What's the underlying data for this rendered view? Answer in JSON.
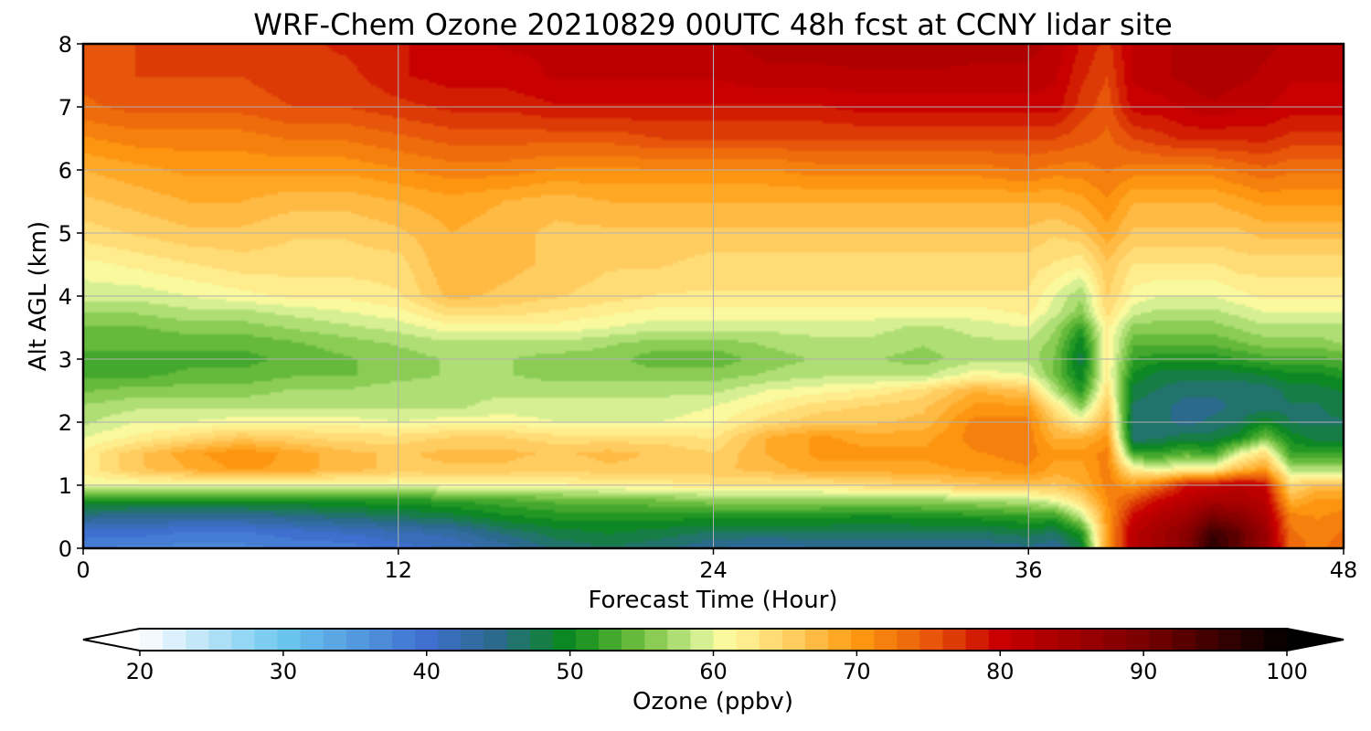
{
  "chart_data": {
    "type": "heatmap",
    "title": "WRF-Chem Ozone  20210829 00UTC 48h fcst at CCNY lidar site",
    "xlabel": "Forecast Time (Hour)",
    "ylabel": "Alt AGL (km)",
    "xlim": [
      0,
      48
    ],
    "ylim": [
      0,
      8
    ],
    "xticks": [
      0,
      12,
      24,
      36,
      48
    ],
    "yticks": [
      0,
      1,
      2,
      3,
      4,
      5,
      6,
      7,
      8
    ],
    "grid": true,
    "x": [
      0,
      2,
      4,
      6,
      8,
      10,
      12,
      14,
      16,
      18,
      20,
      22,
      24,
      26,
      28,
      30,
      32,
      34,
      36,
      37,
      38,
      39,
      40,
      41,
      42,
      43,
      44,
      45,
      46,
      47,
      48
    ],
    "y": [
      0,
      0.25,
      0.5,
      0.75,
      1,
      1.25,
      1.5,
      1.75,
      2,
      2.25,
      2.5,
      2.75,
      3,
      3.25,
      3.5,
      3.75,
      4,
      4.5,
      5,
      5.5,
      6,
      6.5,
      7,
      7.5,
      8
    ],
    "z_units": "ppbv",
    "z": [
      [
        38,
        37,
        37,
        37,
        38,
        38,
        40,
        41,
        43,
        46,
        47,
        46,
        44,
        43,
        44,
        44,
        44,
        44,
        45,
        44,
        48,
        70,
        82,
        85,
        88,
        97,
        92,
        86,
        74,
        72,
        74
      ],
      [
        40,
        40,
        39,
        39,
        40,
        41,
        42,
        43,
        46,
        48,
        49,
        48,
        47,
        47,
        47,
        47,
        47,
        47,
        48,
        47,
        51,
        70,
        82,
        85,
        88,
        95,
        92,
        86,
        73,
        72,
        73
      ],
      [
        45,
        44,
        44,
        44,
        45,
        46,
        47,
        48,
        50,
        51,
        51,
        51,
        51,
        51,
        51,
        50,
        51,
        51,
        52,
        52,
        58,
        70,
        80,
        83,
        85,
        90,
        88,
        84,
        72,
        71,
        72
      ],
      [
        50,
        50,
        50,
        50,
        50,
        51,
        51,
        52,
        53,
        54,
        54,
        55,
        56,
        56,
        56,
        56,
        56,
        57,
        58,
        60,
        64,
        71,
        76,
        80,
        82,
        84,
        84,
        82,
        68,
        70,
        70
      ],
      [
        60,
        60,
        60,
        60,
        60,
        60,
        60,
        61,
        61,
        61,
        62,
        62,
        63,
        63,
        63,
        64,
        65,
        66,
        67,
        66,
        68,
        72,
        70,
        74,
        79,
        80,
        82,
        80,
        64,
        67,
        67
      ],
      [
        62,
        66,
        68,
        70,
        69,
        67,
        66,
        66,
        66,
        65,
        66,
        66,
        66,
        67,
        69,
        69,
        69,
        70,
        71,
        69,
        69,
        72,
        62,
        60,
        62,
        62,
        67,
        70,
        58,
        58,
        58
      ],
      [
        62,
        66,
        69,
        71,
        69,
        67,
        66,
        67,
        67,
        66,
        67,
        66,
        65,
        68,
        70,
        70,
        70,
        71,
        72,
        70,
        70,
        72,
        52,
        52,
        54,
        52,
        60,
        64,
        52,
        52,
        52
      ],
      [
        60,
        62,
        64,
        66,
        65,
        64,
        64,
        65,
        65,
        64,
        64,
        64,
        63,
        68,
        70,
        69,
        69,
        72,
        72,
        68,
        68,
        70,
        46,
        47,
        48,
        48,
        50,
        55,
        50,
        48,
        48
      ],
      [
        58,
        60,
        60,
        61,
        61,
        61,
        60,
        61,
        61,
        60,
        60,
        60,
        61,
        64,
        66,
        66,
        67,
        72,
        72,
        66,
        62,
        68,
        46,
        46,
        45,
        46,
        47,
        50,
        47,
        47,
        47
      ],
      [
        57,
        58,
        58,
        58,
        58,
        58,
        58,
        58,
        59,
        59,
        59,
        59,
        60,
        62,
        64,
        65,
        66,
        70,
        70,
        63,
        56,
        66,
        47,
        46,
        45,
        45,
        46,
        46,
        47,
        47,
        48
      ],
      [
        55,
        56,
        56,
        56,
        57,
        57,
        58,
        58,
        58,
        58,
        58,
        58,
        58,
        60,
        61,
        62,
        64,
        68,
        66,
        58,
        51,
        64,
        48,
        47,
        46,
        46,
        46,
        46,
        48,
        48,
        49
      ],
      [
        53,
        53,
        54,
        54,
        55,
        55,
        56,
        57,
        57,
        56,
        56,
        56,
        56,
        57,
        58,
        58,
        58,
        61,
        60,
        55,
        49,
        62,
        50,
        48,
        48,
        48,
        48,
        49,
        50,
        50,
        51
      ],
      [
        53,
        53,
        53,
        53,
        54,
        55,
        56,
        57,
        57,
        56,
        56,
        54,
        54,
        56,
        57,
        57,
        56,
        58,
        58,
        55,
        48,
        62,
        52,
        51,
        51,
        51,
        52,
        53,
        53,
        53,
        54
      ],
      [
        54,
        54,
        54,
        54,
        55,
        56,
        57,
        58,
        58,
        58,
        57,
        56,
        56,
        57,
        58,
        58,
        57,
        58,
        58,
        56,
        49,
        62,
        54,
        54,
        54,
        54,
        55,
        56,
        56,
        56,
        57
      ],
      [
        55,
        55,
        56,
        56,
        57,
        58,
        59,
        61,
        61,
        61,
        60,
        59,
        59,
        59,
        59,
        59,
        58,
        59,
        60,
        57,
        52,
        62,
        56,
        56,
        56,
        56,
        57,
        58,
        58,
        58,
        58
      ],
      [
        57,
        57,
        58,
        58,
        59,
        60,
        61,
        64,
        64,
        63,
        62,
        61,
        61,
        61,
        61,
        61,
        61,
        61,
        62,
        59,
        56,
        64,
        59,
        58,
        58,
        58,
        59,
        60,
        60,
        60,
        60
      ],
      [
        59,
        59,
        60,
        61,
        62,
        62,
        63,
        67,
        66,
        65,
        64,
        63,
        63,
        63,
        63,
        63,
        63,
        63,
        63,
        60,
        57,
        65,
        61,
        60,
        60,
        60,
        61,
        62,
        62,
        62,
        62
      ],
      [
        61,
        62,
        63,
        64,
        64,
        64,
        64,
        68,
        67,
        66,
        65,
        65,
        64,
        64,
        64,
        64,
        64,
        64,
        64,
        63,
        62,
        66,
        63,
        63,
        63,
        63,
        64,
        64,
        64,
        64,
        64
      ],
      [
        64,
        65,
        66,
        66,
        65,
        65,
        66,
        68,
        67,
        66,
        66,
        66,
        66,
        66,
        66,
        66,
        66,
        66,
        66,
        65,
        66,
        69,
        66,
        66,
        66,
        66,
        66,
        67,
        67,
        67,
        67
      ],
      [
        66,
        67,
        68,
        68,
        67,
        67,
        68,
        69,
        68,
        67,
        68,
        68,
        68,
        68,
        68,
        68,
        68,
        68,
        68,
        68,
        69,
        71,
        68,
        68,
        68,
        68,
        69,
        70,
        70,
        70,
        70
      ],
      [
        68,
        69,
        70,
        70,
        70,
        70,
        71,
        72,
        72,
        71,
        71,
        71,
        71,
        71,
        72,
        72,
        72,
        72,
        73,
        72,
        72,
        73,
        72,
        72,
        72,
        72,
        73,
        74,
        73,
        73,
        73
      ],
      [
        71,
        72,
        72,
        72,
        73,
        73,
        74,
        75,
        75,
        75,
        75,
        76,
        76,
        76,
        76,
        76,
        76,
        76,
        76,
        76,
        75,
        74,
        76,
        77,
        78,
        78,
        78,
        78,
        77,
        77,
        77
      ],
      [
        74,
        75,
        75,
        75,
        76,
        76,
        77,
        78,
        78,
        79,
        79,
        79,
        79,
        79,
        79,
        80,
        80,
        80,
        80,
        80,
        77,
        75,
        80,
        80,
        81,
        82,
        81,
        81,
        80,
        80,
        80
      ],
      [
        75,
        76,
        76,
        76,
        77,
        77,
        79,
        80,
        80,
        81,
        81,
        81,
        81,
        82,
        82,
        82,
        82,
        82,
        82,
        81,
        78,
        76,
        81,
        82,
        83,
        84,
        83,
        82,
        81,
        81,
        81
      ],
      [
        75,
        76,
        76,
        76,
        77,
        78,
        79,
        80,
        81,
        81,
        82,
        82,
        82,
        83,
        83,
        84,
        84,
        83,
        83,
        82,
        79,
        77,
        81,
        82,
        83,
        84,
        83,
        83,
        82,
        82,
        82
      ]
    ],
    "colorbar": {
      "label": "Ozone  (ppbv)",
      "min": 20,
      "max": 100,
      "ticks": [
        20,
        30,
        40,
        50,
        60,
        70,
        80,
        90,
        100
      ],
      "extend": "both",
      "under_color": "#ffffff",
      "over_color": "#000000",
      "stops": [
        {
          "v": 20,
          "c": "#ffffff"
        },
        {
          "v": 30,
          "c": "#6bc6ee"
        },
        {
          "v": 40,
          "c": "#3f6fcf"
        },
        {
          "v": 45,
          "c": "#2a6a8a"
        },
        {
          "v": 50,
          "c": "#0a8a1a"
        },
        {
          "v": 55,
          "c": "#72c040"
        },
        {
          "v": 59,
          "c": "#d0ee90"
        },
        {
          "v": 61,
          "c": "#fffaa0"
        },
        {
          "v": 66,
          "c": "#ffc85a"
        },
        {
          "v": 70,
          "c": "#ff9a10"
        },
        {
          "v": 75,
          "c": "#e85a0a"
        },
        {
          "v": 80,
          "c": "#c80000"
        },
        {
          "v": 90,
          "c": "#7a0000"
        },
        {
          "v": 100,
          "c": "#000000"
        }
      ]
    }
  }
}
